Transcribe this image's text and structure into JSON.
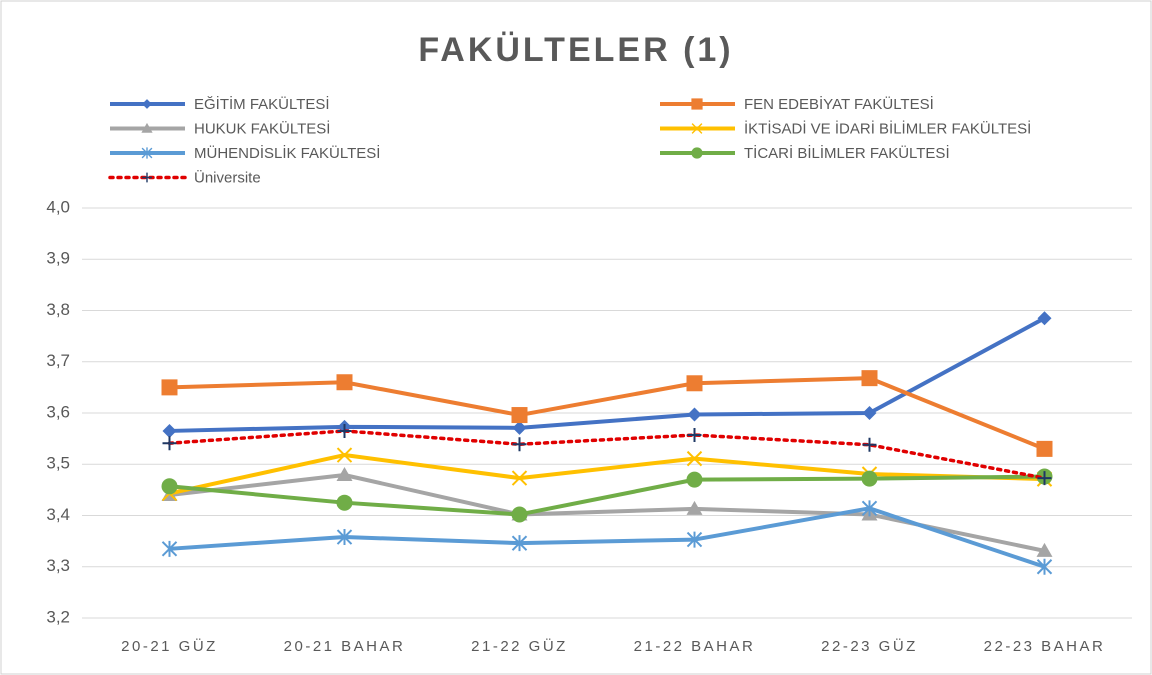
{
  "chart_data": {
    "type": "line",
    "title": "FAKÜLTELER (1)",
    "categories": [
      "20-21 GÜZ",
      "20-21 BAHAR",
      "21-22 GÜZ",
      "21-22 BAHAR",
      "22-23 GÜZ",
      "22-23 BAHAR"
    ],
    "series": [
      {
        "name": "EĞİTİM FAKÜLTESİ",
        "color": "#4472c4",
        "marker": "diamond",
        "values": [
          3.565,
          3.573,
          3.571,
          3.597,
          3.6,
          3.785
        ]
      },
      {
        "name": "FEN EDEBİYAT FAKÜLTESİ",
        "color": "#ed7d31",
        "marker": "square",
        "values": [
          3.65,
          3.66,
          3.596,
          3.658,
          3.668,
          3.53
        ]
      },
      {
        "name": "HUKUK FAKÜLTESİ",
        "color": "#a5a5a5",
        "marker": "triangle",
        "values": [
          3.44,
          3.479,
          3.402,
          3.413,
          3.402,
          3.331
        ]
      },
      {
        "name": "İKTİSADİ VE İDARİ BİLİMLER FAKÜLTESİ",
        "color": "#ffc000",
        "marker": "x",
        "values": [
          3.443,
          3.518,
          3.473,
          3.511,
          3.481,
          3.471
        ]
      },
      {
        "name": "MÜHENDİSLİK FAKÜLTESİ",
        "color": "#5b9bd5",
        "marker": "asterisk",
        "values": [
          3.335,
          3.358,
          3.346,
          3.353,
          3.414,
          3.3
        ]
      },
      {
        "name": "TİCARİ BİLİMLER FAKÜLTESİ",
        "color": "#70ad47",
        "marker": "circle",
        "values": [
          3.457,
          3.425,
          3.402,
          3.47,
          3.472,
          3.476
        ]
      },
      {
        "name": "Üniversite",
        "color": "#e00000",
        "marker_color": "#1f3864",
        "marker": "plus",
        "dashed": true,
        "values": [
          3.541,
          3.565,
          3.539,
          3.557,
          3.538,
          3.473
        ]
      }
    ],
    "ylim": [
      3.2,
      4.0
    ],
    "yticks": [
      {
        "value": 3.2,
        "label": "3,2"
      },
      {
        "value": 3.3,
        "label": "3,3"
      },
      {
        "value": 3.4,
        "label": "3,4"
      },
      {
        "value": 3.5,
        "label": "3,5"
      },
      {
        "value": 3.6,
        "label": "3,6"
      },
      {
        "value": 3.7,
        "label": "3,7"
      },
      {
        "value": 3.8,
        "label": "3,8"
      },
      {
        "value": 3.9,
        "label": "3,9"
      },
      {
        "value": 4.0,
        "label": "4,0"
      }
    ],
    "grid": true,
    "legend": "top"
  }
}
